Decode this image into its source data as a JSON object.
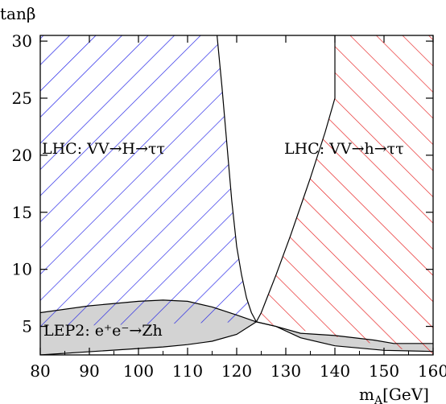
{
  "chart_data": {
    "type": "area",
    "title": "",
    "xlabel": "m_A [GeV]",
    "ylabel": "tanβ",
    "xlim": [
      80,
      160
    ],
    "ylim": [
      2.5,
      30.5
    ],
    "x_ticks": [
      "80",
      "90",
      "100",
      "110",
      "120",
      "130",
      "140",
      "150",
      "160"
    ],
    "y_ticks": [
      "5",
      "10",
      "15",
      "20",
      "25",
      "30"
    ],
    "grid": false,
    "regions": [
      {
        "name": "LHC: VV→H→ττ",
        "label_text": "LHC: VV→H→ττ",
        "fill": "hatch",
        "hatch_direction": "down-right",
        "color": "#1a1ae6",
        "boundary_x": [
          80,
          116,
          117,
          118,
          119,
          120,
          121,
          122,
          123,
          124,
          80
        ],
        "boundary_y": [
          30.5,
          30.5,
          26,
          21,
          16,
          12,
          9.5,
          7.5,
          6.2,
          5.4,
          5.0
        ]
      },
      {
        "name": "LHC: VV→h→ττ",
        "label_text": "LHC: VV→h→ττ",
        "fill": "hatch",
        "hatch_direction": "up-right",
        "color": "#e61a1a",
        "boundary_x": [
          116,
          160,
          160,
          124,
          125,
          126,
          128,
          131,
          135,
          138,
          140,
          140,
          116
        ],
        "boundary_y": [
          30.5,
          30.5,
          2.5,
          5.4,
          6.2,
          7.3,
          9.5,
          13,
          18,
          22,
          25,
          30.5,
          30.5
        ]
      },
      {
        "name": "LEP2: e+e−→Zh",
        "label_text": "LEP2: e⁺e⁻→Zh",
        "fill": "solid",
        "color": "#d3d3d3",
        "upper_x": [
          80,
          90,
          100,
          105,
          110,
          115,
          120,
          124,
          128,
          133,
          140,
          148,
          152,
          160
        ],
        "upper_y": [
          6.2,
          6.8,
          7.2,
          7.3,
          7.2,
          6.7,
          6.0,
          5.4,
          5.0,
          4.4,
          4.2,
          3.8,
          3.5,
          3.5
        ],
        "lower_x": [
          80,
          105,
          110,
          115,
          120,
          124,
          128,
          133,
          140,
          150,
          160
        ],
        "lower_y": [
          2.5,
          3.2,
          3.4,
          3.7,
          4.3,
          5.4,
          5.0,
          4.0,
          3.3,
          2.9,
          2.8
        ]
      }
    ]
  }
}
